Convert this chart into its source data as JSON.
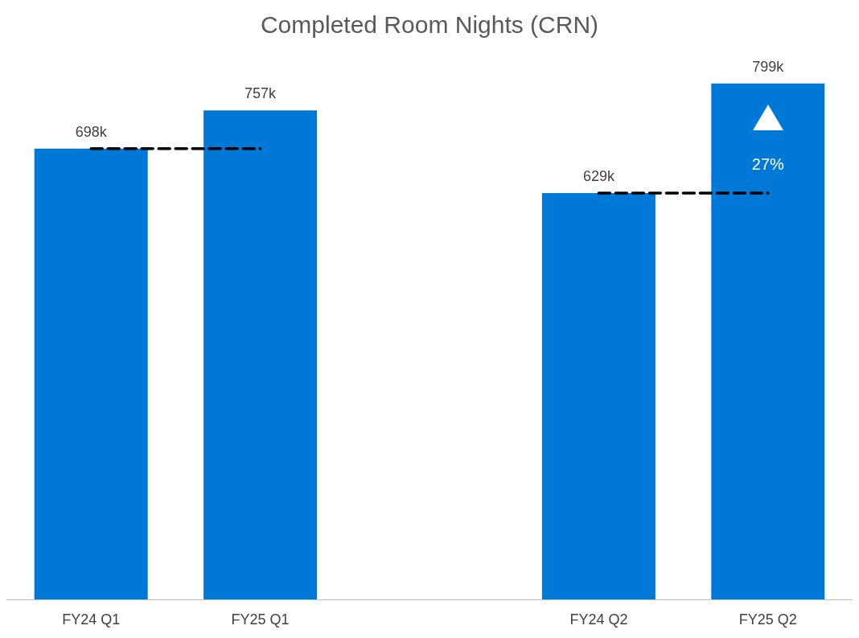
{
  "chart_data": {
    "type": "bar",
    "title": "Completed Room Nights (CRN)",
    "categories": [
      "FY24 Q1",
      "FY25 Q1",
      null,
      "FY24 Q2",
      "FY25 Q2"
    ],
    "series": [
      {
        "color": "#0078d7",
        "values": [
          698,
          757,
          null,
          629,
          799
        ],
        "value_labels": [
          "698k",
          "757k",
          null,
          "629k",
          "799k"
        ]
      },
      {
        "type": "line",
        "color": "#000000",
        "values": [
          698,
          698,
          null,
          null,
          null
        ],
        "line_style": "dashed",
        "marker": "none"
      },
      {
        "type": "line",
        "color": "#000000",
        "values": [
          null,
          null,
          null,
          629,
          629
        ],
        "line_style": "dashed",
        "marker": "none"
      }
    ],
    "annotations": [
      "27%"
    ]
  }
}
